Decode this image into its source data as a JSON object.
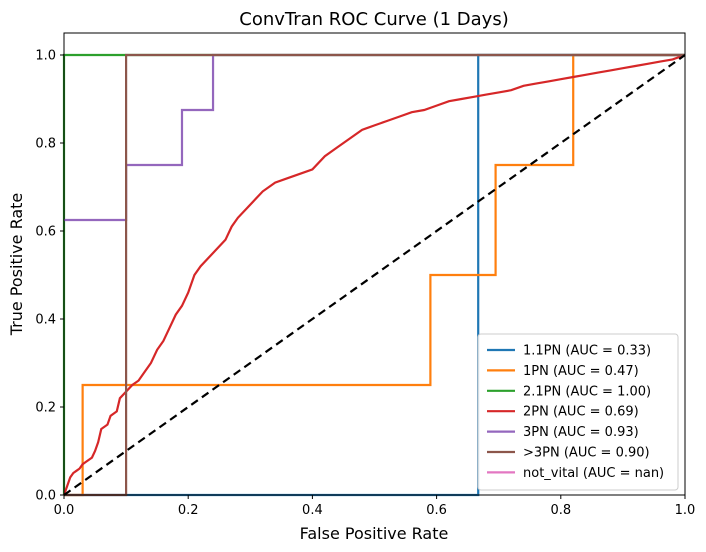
{
  "chart_data": {
    "type": "line",
    "title": "ConvTran ROC Curve (1 Days)",
    "xlabel": "False Positive Rate",
    "ylabel": "True Positive Rate",
    "xlim": [
      0.0,
      1.0
    ],
    "ylim": [
      0.0,
      1.05
    ],
    "grid": false,
    "legend_position": "bottom-right",
    "x_ticks": [
      "0.0",
      "0.2",
      "0.4",
      "0.6",
      "0.8",
      "1.0"
    ],
    "y_ticks": [
      "0.0",
      "0.2",
      "0.4",
      "0.6",
      "0.8",
      "1.0"
    ],
    "series": [
      {
        "name": "1.1PN (AUC = 0.33)",
        "color": "#1f77b4",
        "x": [
          0.0,
          0.667,
          0.667,
          1.0
        ],
        "y": [
          0.0,
          0.0,
          1.0,
          1.0
        ]
      },
      {
        "name": "1PN (AUC = 0.47)",
        "color": "#ff7f0e",
        "x": [
          0.0,
          0.03,
          0.03,
          0.59,
          0.59,
          0.695,
          0.695,
          0.82,
          0.82,
          1.0
        ],
        "y": [
          0.0,
          0.0,
          0.25,
          0.25,
          0.5,
          0.5,
          0.75,
          0.75,
          1.0,
          1.0
        ]
      },
      {
        "name": "2.1PN (AUC = 1.00)",
        "color": "#2ca02c",
        "x": [
          0.0,
          0.0,
          0.1,
          1.0
        ],
        "y": [
          0.0,
          1.0,
          1.0,
          1.0
        ]
      },
      {
        "name": "2PN (AUC = 0.69)",
        "color": "#d62728",
        "x": [
          0.0,
          0.005,
          0.01,
          0.015,
          0.02,
          0.025,
          0.03,
          0.035,
          0.045,
          0.05,
          0.055,
          0.06,
          0.07,
          0.075,
          0.085,
          0.09,
          0.1,
          0.11,
          0.12,
          0.13,
          0.14,
          0.15,
          0.16,
          0.17,
          0.18,
          0.19,
          0.2,
          0.21,
          0.22,
          0.24,
          0.26,
          0.27,
          0.28,
          0.3,
          0.32,
          0.34,
          0.36,
          0.38,
          0.4,
          0.42,
          0.44,
          0.46,
          0.48,
          0.5,
          0.52,
          0.54,
          0.56,
          0.58,
          0.6,
          0.62,
          0.64,
          0.66,
          0.68,
          0.7,
          0.72,
          0.74,
          0.76,
          0.78,
          0.8,
          0.82,
          0.84,
          0.86,
          0.88,
          0.9,
          0.92,
          0.94,
          0.96,
          0.98,
          1.0
        ],
        "y": [
          0.0,
          0.02,
          0.04,
          0.05,
          0.055,
          0.06,
          0.07,
          0.075,
          0.085,
          0.1,
          0.12,
          0.15,
          0.16,
          0.18,
          0.19,
          0.22,
          0.235,
          0.25,
          0.26,
          0.28,
          0.3,
          0.33,
          0.35,
          0.38,
          0.41,
          0.43,
          0.46,
          0.5,
          0.52,
          0.55,
          0.58,
          0.61,
          0.63,
          0.66,
          0.69,
          0.71,
          0.72,
          0.73,
          0.74,
          0.77,
          0.79,
          0.81,
          0.83,
          0.84,
          0.85,
          0.86,
          0.87,
          0.875,
          0.885,
          0.895,
          0.9,
          0.905,
          0.91,
          0.915,
          0.92,
          0.93,
          0.935,
          0.94,
          0.945,
          0.95,
          0.955,
          0.96,
          0.965,
          0.97,
          0.975,
          0.98,
          0.985,
          0.99,
          1.0
        ]
      },
      {
        "name": "3PN (AUC = 0.93)",
        "color": "#9467bd",
        "x": [
          0.0,
          0.1,
          0.1,
          0.19,
          0.19,
          0.24,
          0.24,
          1.0
        ],
        "y": [
          0.625,
          0.625,
          0.75,
          0.75,
          0.875,
          0.875,
          1.0,
          1.0
        ]
      },
      {
        "name": ">3PN (AUC = 0.90)",
        "color": "#8c564b",
        "x": [
          0.0,
          0.1,
          0.1,
          1.0
        ],
        "y": [
          0.0,
          0.0,
          1.0,
          1.0
        ]
      },
      {
        "name": "not_vital (AUC = nan)",
        "color": "#e377c2",
        "x": [],
        "y": []
      }
    ],
    "reference_line": {
      "x": [
        0.0,
        1.0
      ],
      "y": [
        0.0,
        1.0
      ],
      "color": "#000000",
      "style": "dashed"
    }
  }
}
